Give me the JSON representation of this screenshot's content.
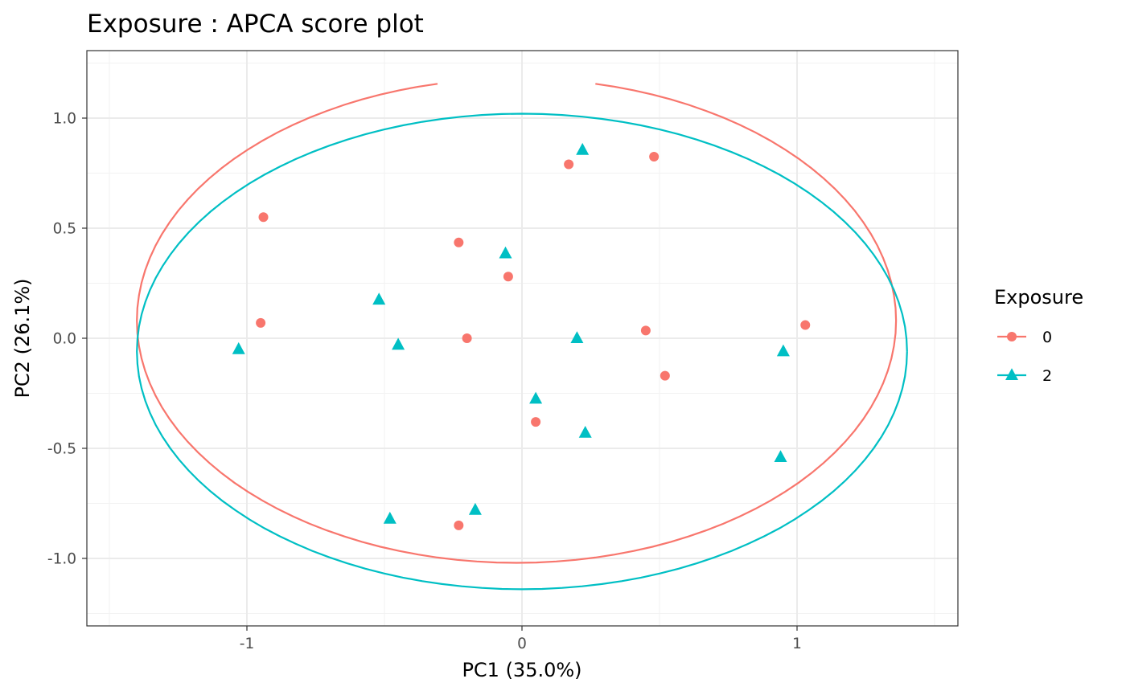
{
  "chart_data": {
    "type": "scatter",
    "title": "Exposure : APCA score plot",
    "xlabel": "PC1 (35.0%)",
    "ylabel": "PC2 (26.1%)",
    "xlim": [
      -1.58,
      1.58
    ],
    "ylim": [
      -1.3,
      1.3
    ],
    "x_ticks": [
      -1,
      0,
      1
    ],
    "x_tick_labels": [
      "-1",
      "0",
      "1"
    ],
    "y_ticks": [
      -1.0,
      -0.5,
      0.0,
      0.5,
      1.0
    ],
    "y_tick_labels": [
      "-1.0",
      "-0.5",
      "0.0",
      "0.5",
      "1.0"
    ],
    "grid": true,
    "legend": {
      "title": "Exposure",
      "position": "right"
    },
    "series": [
      {
        "name": "0",
        "color": "#F8766D",
        "marker": "circle",
        "points": [
          [
            -0.94,
            0.55
          ],
          [
            -0.95,
            0.07
          ],
          [
            -0.23,
            0.435
          ],
          [
            -0.05,
            0.28
          ],
          [
            -0.2,
            0.0
          ],
          [
            0.17,
            0.79
          ],
          [
            0.48,
            0.825
          ],
          [
            0.45,
            0.035
          ],
          [
            0.52,
            -0.17
          ],
          [
            1.03,
            0.06
          ],
          [
            0.05,
            -0.38
          ],
          [
            -0.23,
            -0.85
          ]
        ],
        "ellipse": {
          "cx": -0.02,
          "cy": 0.08,
          "rx": 1.38,
          "ry": 1.1,
          "arc": "partial"
        }
      },
      {
        "name": "2",
        "color": "#00BFC4",
        "marker": "triangle",
        "points": [
          [
            0.22,
            0.855
          ],
          [
            -0.06,
            0.385
          ],
          [
            -0.52,
            0.175
          ],
          [
            -0.45,
            -0.03
          ],
          [
            -1.03,
            -0.05
          ],
          [
            0.2,
            0.0
          ],
          [
            0.05,
            -0.275
          ],
          [
            0.23,
            -0.43
          ],
          [
            0.95,
            -0.06
          ],
          [
            0.94,
            -0.54
          ],
          [
            -0.48,
            -0.82
          ],
          [
            -0.17,
            -0.78
          ]
        ],
        "ellipse": {
          "cx": 0.0,
          "cy": -0.06,
          "rx": 1.4,
          "ry": 1.08,
          "arc": "partial"
        }
      }
    ]
  }
}
